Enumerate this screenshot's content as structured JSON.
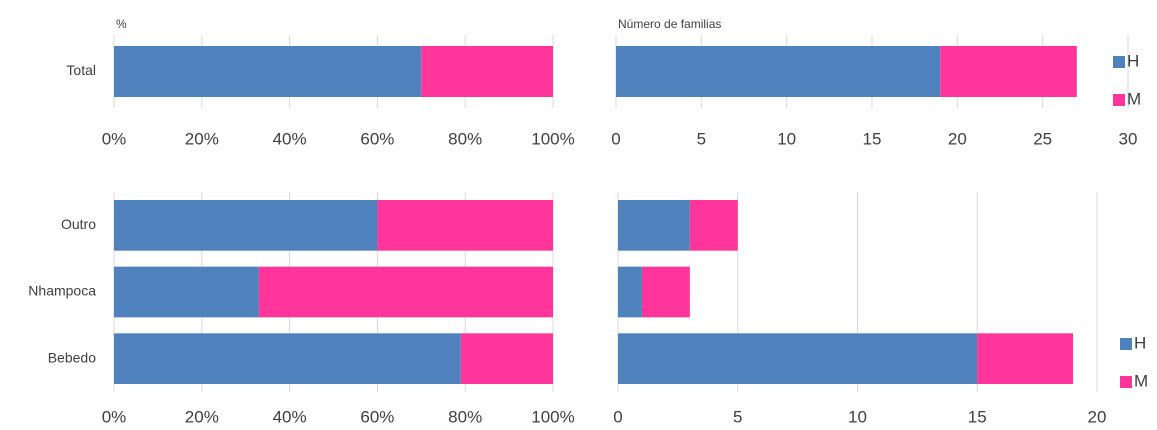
{
  "chart_data": [
    {
      "type": "bar",
      "orientation": "horizontal",
      "stacked": true,
      "title": "%",
      "categories": [
        "Total"
      ],
      "series": [
        {
          "name": "H",
          "color": "#4f81bd",
          "values": [
            70
          ]
        },
        {
          "name": "M",
          "color": "#ff359b",
          "values": [
            30
          ]
        }
      ],
      "xlim": [
        0,
        100
      ],
      "xticks": [
        {
          "value": 0,
          "label": "0%"
        },
        {
          "value": 20,
          "label": "20%"
        },
        {
          "value": 40,
          "label": "40%"
        },
        {
          "value": 60,
          "label": "60%"
        },
        {
          "value": 80,
          "label": "80%"
        },
        {
          "value": 100,
          "label": "100%"
        }
      ],
      "grid": true
    },
    {
      "type": "bar",
      "orientation": "horizontal",
      "stacked": true,
      "title": "Número de familias",
      "categories": [
        "Total"
      ],
      "series": [
        {
          "name": "H",
          "color": "#4f81bd",
          "values": [
            19
          ]
        },
        {
          "name": "M",
          "color": "#ff359b",
          "values": [
            8
          ]
        }
      ],
      "xlim": [
        0,
        30
      ],
      "xticks": [
        0,
        5,
        10,
        15,
        20,
        25,
        30
      ],
      "grid": true,
      "legend": "right"
    },
    {
      "type": "bar",
      "orientation": "horizontal",
      "stacked": true,
      "categories": [
        "Outro",
        "Nhampoca",
        "Bebedo"
      ],
      "series": [
        {
          "name": "H",
          "color": "#4f81bd",
          "values": [
            60,
            33,
            79
          ]
        },
        {
          "name": "M",
          "color": "#ff359b",
          "values": [
            40,
            67,
            21
          ]
        }
      ],
      "xlim": [
        0,
        100
      ],
      "xticks": [
        {
          "value": 0,
          "label": "0%"
        },
        {
          "value": 20,
          "label": "20%"
        },
        {
          "value": 40,
          "label": "40%"
        },
        {
          "value": 60,
          "label": "60%"
        },
        {
          "value": 80,
          "label": "80%"
        },
        {
          "value": 100,
          "label": "100%"
        }
      ],
      "grid": true
    },
    {
      "type": "bar",
      "orientation": "horizontal",
      "stacked": true,
      "categories": [
        "Outro",
        "Nhampoca",
        "Bebedo"
      ],
      "series": [
        {
          "name": "H",
          "color": "#4f81bd",
          "values": [
            3,
            1,
            15
          ]
        },
        {
          "name": "M",
          "color": "#ff359b",
          "values": [
            2,
            2,
            4
          ]
        }
      ],
      "xlim": [
        0,
        20
      ],
      "xticks": [
        0,
        5,
        10,
        15,
        20
      ],
      "grid": true,
      "legend": "right"
    }
  ]
}
